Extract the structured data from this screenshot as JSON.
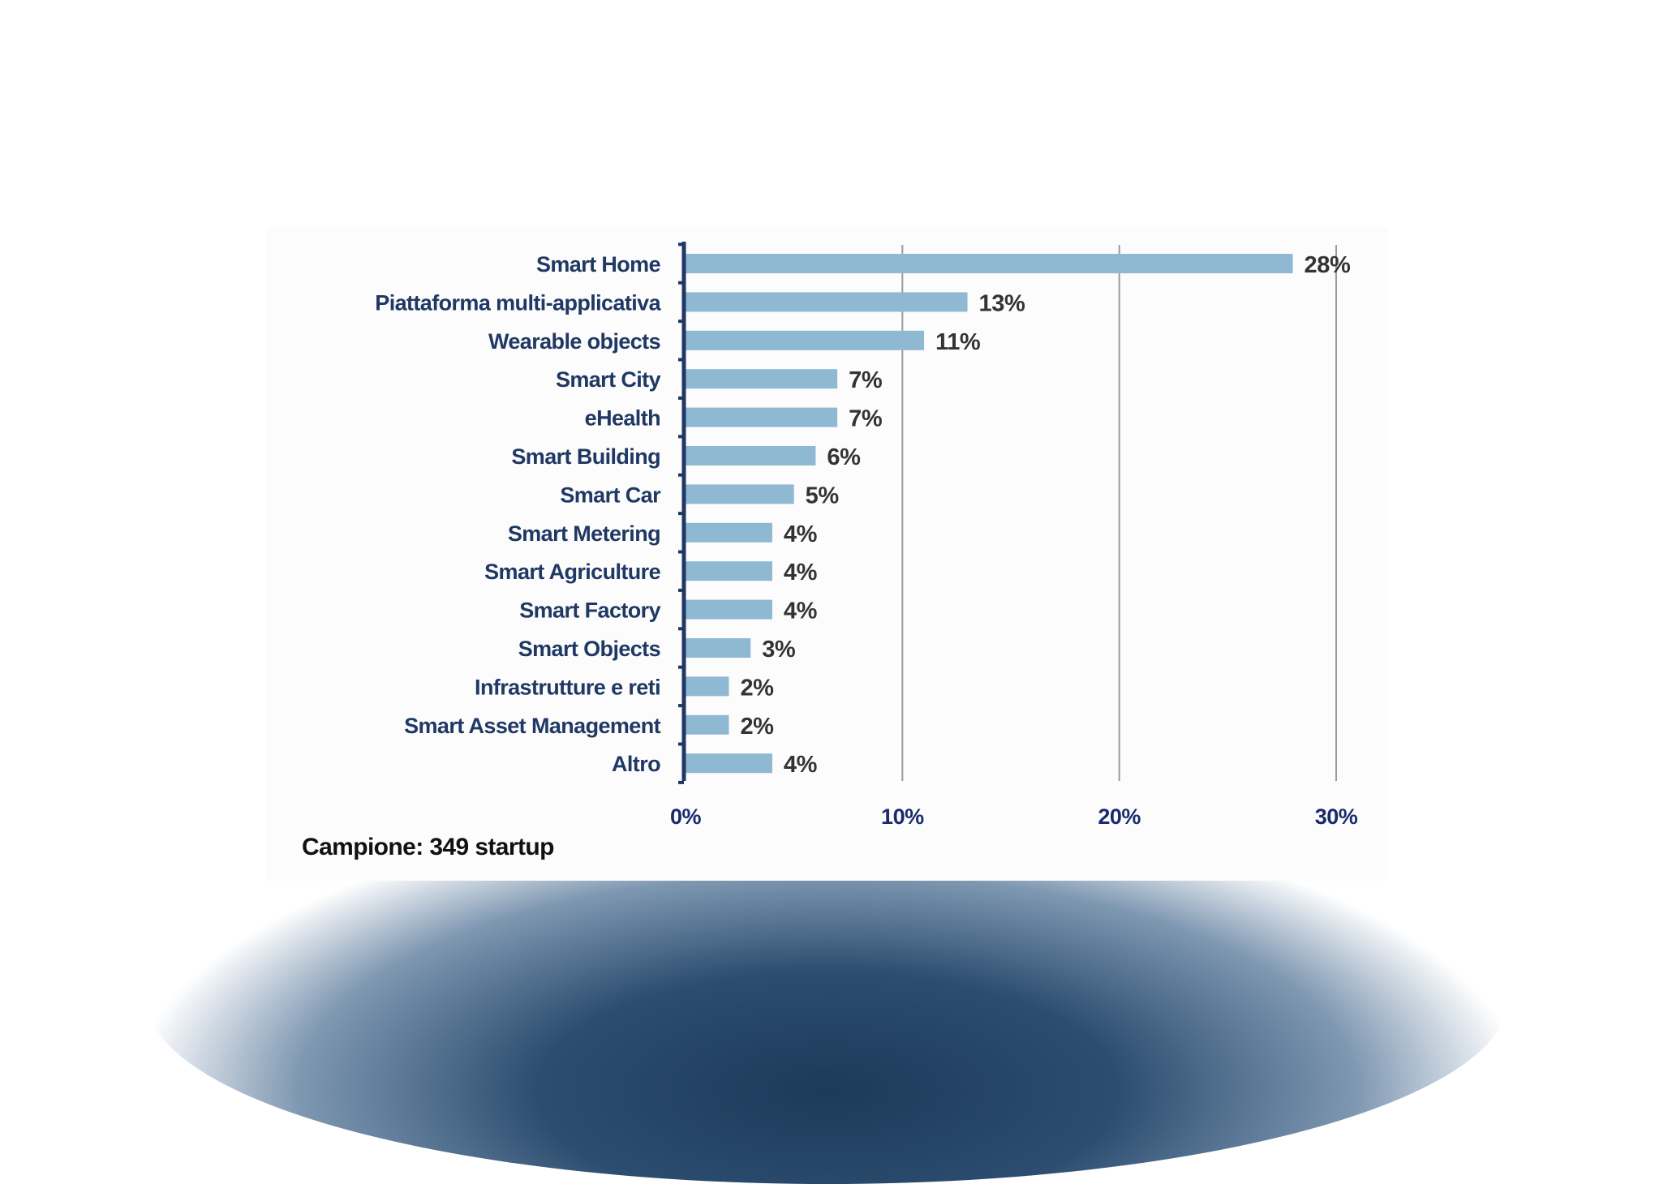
{
  "chart_data": {
    "type": "bar",
    "orientation": "horizontal",
    "categories": [
      "Smart Home",
      "Piattaforma multi-applicativa",
      "Wearable objects",
      "Smart City",
      "eHealth",
      "Smart Building",
      "Smart Car",
      "Smart Metering",
      "Smart Agriculture",
      "Smart Factory",
      "Smart Objects",
      "Infrastrutture e reti",
      "Smart Asset Management",
      "Altro"
    ],
    "values": [
      28,
      13,
      11,
      7,
      7,
      6,
      5,
      4,
      4,
      4,
      3,
      2,
      2,
      4
    ],
    "data_labels": [
      "28%",
      "13%",
      "11%",
      "7%",
      "7%",
      "6%",
      "5%",
      "4%",
      "4%",
      "4%",
      "3%",
      "2%",
      "2%",
      "4%"
    ],
    "xlim": [
      0,
      30
    ],
    "ticks": [
      0,
      10,
      20,
      30
    ],
    "tick_labels": [
      "0%",
      "10%",
      "20%",
      "30%"
    ],
    "grid": true,
    "note": "Campione: 349 startup",
    "colors": {
      "bar": "#8fb8d2",
      "category_text": "#1f3864",
      "axis": "#1f3864",
      "grid": "#9a9a9a"
    }
  }
}
